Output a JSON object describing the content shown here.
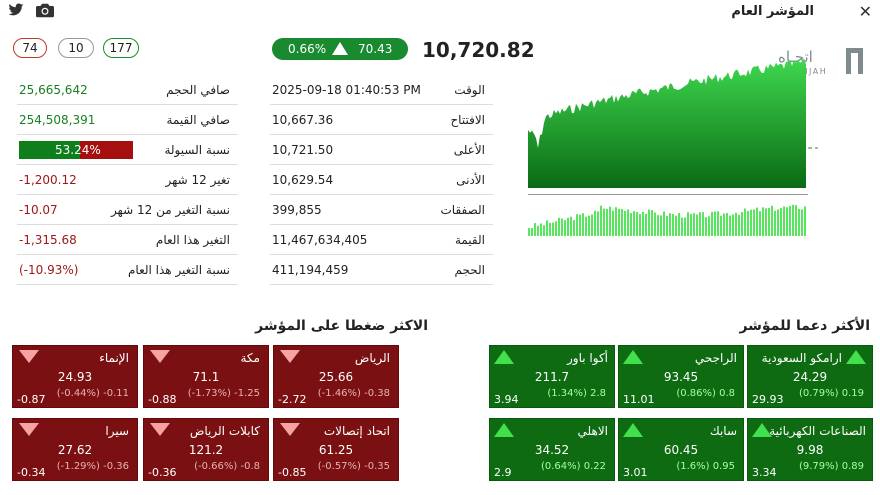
{
  "window": {
    "title": "المؤشر العام",
    "close_icon": "close-icon",
    "twitter_icon": "twitter-icon",
    "camera_icon": "camera-icon"
  },
  "breadth": {
    "declining": "74",
    "unchanged": "10",
    "advancing": "177"
  },
  "index": {
    "value": "10,720.82",
    "change_pct": "0.66%",
    "change_points": "70.43",
    "direction": "up"
  },
  "details": [
    {
      "label": "الوقت",
      "value": "2025-09-18 01:40:53 PM"
    },
    {
      "label": "الافتتاح",
      "value": "10,667.36"
    },
    {
      "label": "الأعلى",
      "value": "10,721.50"
    },
    {
      "label": "الأدنى",
      "value": "10,629.54"
    },
    {
      "label": "الصفقات",
      "value": "399,855"
    },
    {
      "label": "القيمة",
      "value": "11,467,634,405"
    },
    {
      "label": "الحجم",
      "value": "411,194,459"
    }
  ],
  "stats": [
    {
      "label": "صافي الحجم",
      "value": "25,665,642",
      "color": "green"
    },
    {
      "label": "صافي القيمة",
      "value": "254,508,391",
      "color": "green"
    },
    {
      "label": "نسبة السيولة",
      "value": "53.24%",
      "liquidity": 0.5324
    },
    {
      "label": "تغير 12 شهر",
      "value": "-1,200.12",
      "color": "red"
    },
    {
      "label": "نسبة التغير من 12 شهر",
      "value": "-10.07",
      "color": "red"
    },
    {
      "label": "التغير هذا العام",
      "value": "-1,315.68",
      "color": "red"
    },
    {
      "label": "نسبة التغير هذا العام",
      "value": "(-10.93%)",
      "color": "red"
    }
  ],
  "chart": {
    "watermark_ar": "اتجـاه",
    "watermark_en": "ETTIJAH",
    "color_accent": "#1a9e2e",
    "color_fill_top": "#4be05a",
    "color_fill_bottom": "#0a6a14"
  },
  "supporting": {
    "title": "الأكثر دعما للمؤشر",
    "items": [
      {
        "name": "ارامكو السعودية",
        "price": "24.29",
        "change": "(0.79%) 0.19",
        "impact": "29.93"
      },
      {
        "name": "الراجحي",
        "price": "93.45",
        "change": "(0.86%) 0.8",
        "impact": "11.01"
      },
      {
        "name": "أكوا باور",
        "price": "211.7",
        "change": "(1.34%) 2.8",
        "impact": "3.94"
      },
      {
        "name": "الصناعات الكهربائية",
        "price": "9.98",
        "change": "(9.79%) 0.89",
        "impact": "3.34"
      },
      {
        "name": "سابك",
        "price": "60.45",
        "change": "(1.6%) 0.95",
        "impact": "3.01"
      },
      {
        "name": "الاهلي",
        "price": "34.52",
        "change": "(0.64%) 0.22",
        "impact": "2.9"
      }
    ]
  },
  "pressuring": {
    "title": "الاكثر ضغطا على المؤشر",
    "items": [
      {
        "name": "الرياض",
        "price": "25.66",
        "change": "(-1.46%) -0.38",
        "impact": "-2.72"
      },
      {
        "name": "مكة",
        "price": "71.1",
        "change": "(-1.73%) -1.25",
        "impact": "-0.88"
      },
      {
        "name": "الإنماء",
        "price": "24.93",
        "change": "(-0.44%) -0.11",
        "impact": "-0.87"
      },
      {
        "name": "اتحاد إتصالات",
        "price": "61.25",
        "change": "(-0.57%) -0.35",
        "impact": "-0.85"
      },
      {
        "name": "كابلات الرياض",
        "price": "121.2",
        "change": "(-0.66%) -0.8",
        "impact": "-0.36"
      },
      {
        "name": "سيرا",
        "price": "27.62",
        "change": "(-1.29%) -0.36",
        "impact": "-0.34"
      }
    ]
  }
}
